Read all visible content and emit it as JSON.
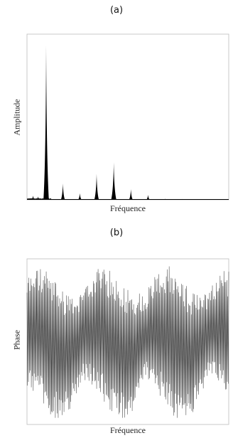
{
  "chart_data": [
    {
      "type": "area",
      "panel_label": "(a)",
      "title": "",
      "xlabel": "Fréquence",
      "ylabel": "Amplitude",
      "xlim": [
        0,
        1
      ],
      "ylim": [
        0,
        1
      ],
      "grid": false,
      "legend": "none",
      "color": "#000000",
      "peaks": [
        {
          "x": 0.03,
          "y": 0.025
        },
        {
          "x": 0.055,
          "y": 0.02
        },
        {
          "x": 0.095,
          "y": 0.95
        },
        {
          "x": 0.178,
          "y": 0.1
        },
        {
          "x": 0.262,
          "y": 0.04
        },
        {
          "x": 0.345,
          "y": 0.16
        },
        {
          "x": 0.43,
          "y": 0.23
        },
        {
          "x": 0.515,
          "y": 0.065
        },
        {
          "x": 0.6,
          "y": 0.03
        },
        {
          "x": 0.685,
          "y": 0.006
        },
        {
          "x": 0.77,
          "y": 0.005
        },
        {
          "x": 0.855,
          "y": 0.004
        }
      ]
    },
    {
      "type": "line",
      "panel_label": "(b)",
      "title": "",
      "xlabel": "Fréquence",
      "ylabel": "Phase",
      "xlim": [
        0,
        1
      ],
      "ylim": [
        -1,
        1
      ],
      "grid": false,
      "legend": "none",
      "color": "#444444",
      "description_of_values": "rapidly oscillating phase between about -1 and 1 with irregular envelope"
    }
  ]
}
